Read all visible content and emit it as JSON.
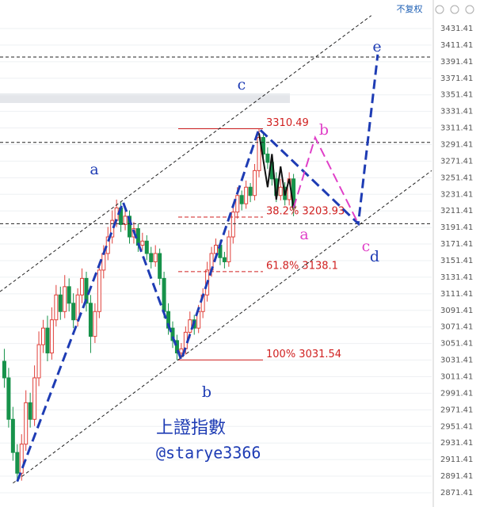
{
  "header": {
    "button": "不复权"
  },
  "chart_data": {
    "type": "candlestick",
    "open": [
      3030,
      3010,
      2960,
      2920,
      2895,
      2930,
      2980,
      2960,
      3010,
      3050,
      3070,
      3040,
      3080,
      3110,
      3090,
      3120,
      3100,
      3080,
      3110,
      3130,
      3100,
      3060,
      3090,
      3140,
      3160,
      3180,
      3200,
      3215,
      3195,
      3205,
      3180,
      3190,
      3170,
      3175,
      3160,
      3150,
      3160,
      3130,
      3090,
      3070,
      3055,
      3040,
      3045,
      3065,
      3080,
      3070,
      3090,
      3110,
      3140,
      3160,
      3170,
      3155,
      3150,
      3180,
      3210,
      3230,
      3220,
      3240,
      3230,
      3260,
      3300,
      3280,
      3270,
      3250,
      3230,
      3240,
      3225,
      3250
    ],
    "high": [
      3045,
      3022,
      2975,
      2930,
      2942,
      2995,
      2992,
      3025,
      3066,
      3080,
      3085,
      3095,
      3122,
      3120,
      3134,
      3130,
      3112,
      3118,
      3142,
      3138,
      3110,
      3100,
      3150,
      3170,
      3192,
      3212,
      3225,
      3222,
      3214,
      3212,
      3198,
      3196,
      3185,
      3182,
      3168,
      3170,
      3166,
      3138,
      3100,
      3078,
      3062,
      3052,
      3072,
      3090,
      3086,
      3098,
      3118,
      3150,
      3168,
      3178,
      3176,
      3162,
      3188,
      3220,
      3240,
      3236,
      3248,
      3245,
      3268,
      3310.49,
      3306,
      3288,
      3278,
      3258,
      3250,
      3246,
      3258,
      3256
    ],
    "low": [
      2998,
      2950,
      2910,
      2885,
      2886,
      2922,
      2950,
      2952,
      3000,
      3040,
      3030,
      3032,
      3072,
      3080,
      3082,
      3090,
      3070,
      3072,
      3100,
      3090,
      3040,
      3052,
      3082,
      3130,
      3152,
      3172,
      3192,
      3186,
      3188,
      3172,
      3172,
      3162,
      3164,
      3152,
      3142,
      3144,
      3122,
      3082,
      3062,
      3046,
      3031.54,
      3034,
      3038,
      3058,
      3062,
      3064,
      3082,
      3102,
      3132,
      3152,
      3146,
      3142,
      3144,
      3172,
      3202,
      3212,
      3214,
      3222,
      3224,
      3252,
      3272,
      3262,
      3242,
      3222,
      3224,
      3218,
      3218,
      3205
    ],
    "close": [
      3010,
      2960,
      2920,
      2895,
      2930,
      2980,
      2960,
      3010,
      3050,
      3070,
      3040,
      3080,
      3110,
      3090,
      3120,
      3100,
      3080,
      3110,
      3130,
      3100,
      3060,
      3090,
      3140,
      3160,
      3180,
      3200,
      3215,
      3195,
      3205,
      3180,
      3190,
      3170,
      3175,
      3160,
      3150,
      3160,
      3130,
      3090,
      3070,
      3055,
      3040,
      3045,
      3065,
      3080,
      3070,
      3090,
      3110,
      3140,
      3160,
      3170,
      3155,
      3150,
      3180,
      3210,
      3230,
      3220,
      3240,
      3230,
      3260,
      3300,
      3280,
      3270,
      3250,
      3230,
      3240,
      3225,
      3250,
      3215
    ],
    "up_color": "#e0403a",
    "down_color": "#17924a",
    "xlim": [
      -1,
      99
    ],
    "ylim": [
      2854.2,
      3465.8
    ],
    "yticks": [
      2871.41,
      2891.41,
      2911.41,
      2931.41,
      2951.41,
      2971.41,
      2991.41,
      3011.41,
      3031.41,
      3051.41,
      3071.41,
      3091.41,
      3111.41,
      3131.41,
      3151.41,
      3171.41,
      3191.41,
      3211.41,
      3231.41,
      3251.41,
      3271.41,
      3291.41,
      3311.41,
      3331.41,
      3351.41,
      3371.41,
      3391.41,
      3411.41,
      3431.41
    ],
    "grid": true,
    "lines": [
      {
        "color": "#222222",
        "style": "dashed",
        "width": 1,
        "x": [
          -1,
          85
        ],
        "y": [
          3114,
          3447
        ]
      },
      {
        "color": "#222222",
        "style": "dashed",
        "width": 1,
        "x": [
          2,
          99
        ],
        "y": [
          2883,
          3260
        ]
      },
      {
        "color": "#222222",
        "style": "dashed",
        "width": 1,
        "x": [
          -1,
          99
        ],
        "y": [
          3397,
          3397
        ]
      },
      {
        "color": "#222222",
        "style": "dashed",
        "width": 1,
        "x": [
          -1,
          99
        ],
        "y": [
          3294,
          3294
        ]
      },
      {
        "color": "#222222",
        "style": "dashed",
        "width": 1,
        "x": [
          -1,
          99
        ],
        "y": [
          3196,
          3196
        ]
      },
      {
        "color": "#111111",
        "style": "solid",
        "width": 2,
        "x": [
          59,
          61,
          62,
          63,
          64,
          65,
          66,
          67
        ],
        "y": [
          3305,
          3240,
          3280,
          3225,
          3265,
          3230,
          3250,
          3215
        ]
      },
      {
        "color": "#1e3cb4",
        "style": "dashed",
        "width": 3,
        "x": [
          3,
          27.5,
          41,
          59,
          82,
          86.5
        ],
        "y": [
          2885,
          3222,
          3031.54,
          3310.49,
          3196,
          3400
        ]
      },
      {
        "color": "#e040c8",
        "style": "dashed",
        "width": 2,
        "x": [
          67,
          72,
          82
        ],
        "y": [
          3215,
          3300,
          3196
        ]
      }
    ],
    "fib_levels": [
      {
        "label": "3310.49",
        "value": 3310.49,
        "style": "solid"
      },
      {
        "label": "38.2% 3203.93",
        "value": 3203.93,
        "style": "dashed"
      },
      {
        "label": "61.8% 3138.1",
        "value": 3138.1,
        "style": "dashed"
      },
      {
        "label": "100% 3031.54",
        "value": 3031.54,
        "style": "solid"
      }
    ],
    "fib_color": "#d02020",
    "wave_labels": [
      {
        "text": "a",
        "color": "#1e3cb4"
      },
      {
        "text": "b",
        "color": "#1e3cb4"
      },
      {
        "text": "c",
        "color": "#1e3cb4"
      },
      {
        "text": "a",
        "color": "#e040c8"
      },
      {
        "text": "b",
        "color": "#e040c8"
      },
      {
        "text": "c",
        "color": "#e040c8"
      },
      {
        "text": "d",
        "color": "#1e3cb4"
      },
      {
        "text": "e",
        "color": "#1e3cb4"
      }
    ],
    "watermark": [
      "上證指數",
      "@starye3366"
    ]
  }
}
